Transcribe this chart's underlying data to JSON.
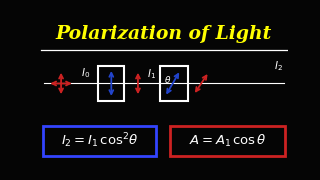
{
  "title": "Polarization of Light",
  "title_color": "#FFFF00",
  "bg_color": "#050505",
  "formula_left_box_color": "#3344FF",
  "formula_right_box_color": "#CC2222",
  "line_color": "#FFFFFF",
  "arrow_red": "#CC2222",
  "arrow_blue": "#2244CC",
  "text_color": "#FFFFFF",
  "xlim": [
    0,
    10
  ],
  "ylim": [
    0,
    5.6
  ]
}
